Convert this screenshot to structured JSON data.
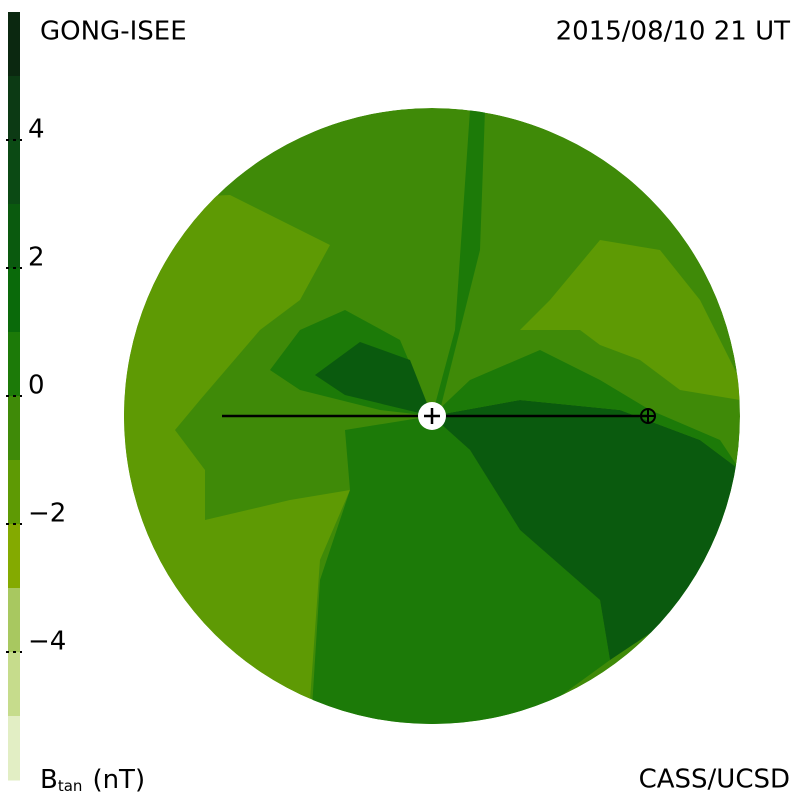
{
  "chart_data": {
    "type": "colormap",
    "title": "GONG-ISEE",
    "subtitle": "2015/08/10 21 UT",
    "credit": "CASS/UCSD",
    "colorbar": {
      "label_symbol": "B",
      "label_subscript": "tan",
      "label_unit": "(nT)",
      "ylim": [
        -6,
        6
      ],
      "yticks": [
        4,
        2,
        0,
        {
          "value": -2,
          "label": "−2"
        },
        {
          "value": -4,
          "label": "−4"
        }
      ],
      "colors": [
        "#0b2810",
        "#0c3a14",
        "#0b4a14",
        "#0a5a0e",
        "#0a6a0a",
        "#1c7a08",
        "#3f8a08",
        "#5e9a04",
        "#84aa00",
        "#a8c860",
        "#c6dc8c",
        "#e2eec4"
      ]
    }
  }
}
